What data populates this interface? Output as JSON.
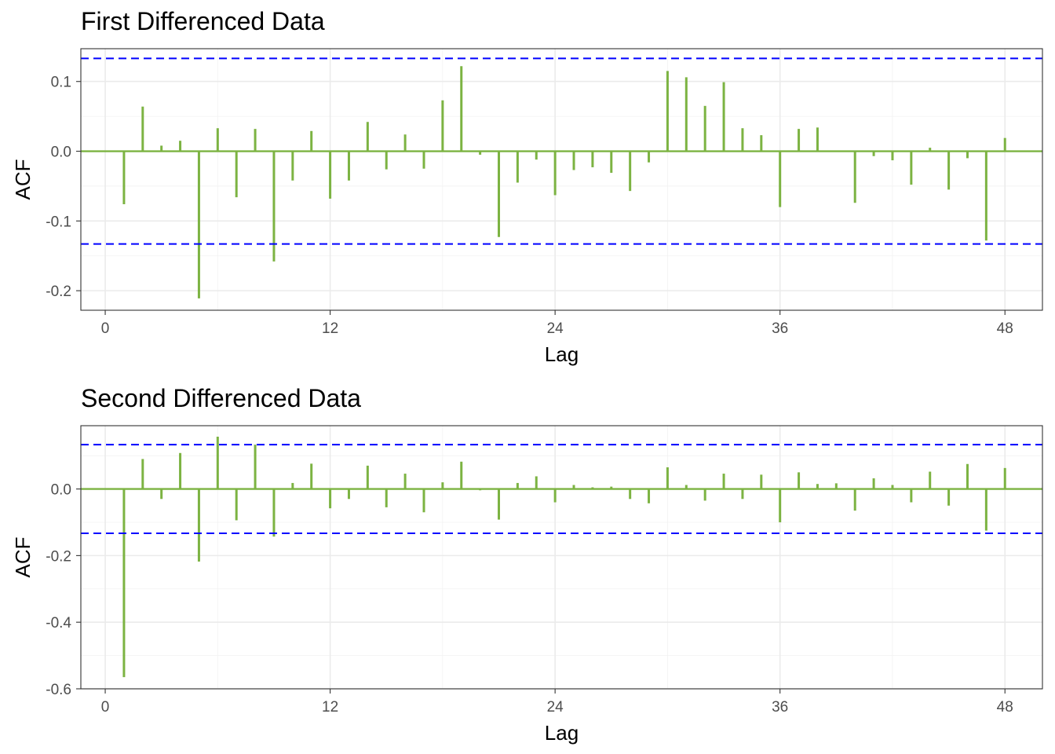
{
  "chart_data": [
    {
      "type": "bar",
      "title": "First Differenced Data",
      "xlabel": "Lag",
      "ylabel": "ACF",
      "xlim": [
        -1.3,
        50
      ],
      "ylim": [
        -0.228,
        0.147
      ],
      "x_ticks": [
        0,
        12,
        24,
        36,
        48
      ],
      "x_tick_labels": [
        "0",
        "12",
        "24",
        "36",
        "48"
      ],
      "y_ticks": [
        -0.2,
        -0.1,
        0.0,
        0.1
      ],
      "y_tick_labels": [
        "-0.2",
        "-0.1",
        "0.0",
        "0.1"
      ],
      "ci": [
        0.133,
        -0.133
      ],
      "grid": true,
      "x": [
        1,
        2,
        3,
        4,
        5,
        6,
        7,
        8,
        9,
        10,
        11,
        12,
        13,
        14,
        15,
        16,
        17,
        18,
        19,
        20,
        21,
        22,
        23,
        24,
        25,
        26,
        27,
        28,
        29,
        30,
        31,
        32,
        33,
        34,
        35,
        36,
        37,
        38,
        39,
        40,
        41,
        42,
        43,
        44,
        45,
        46,
        47,
        48
      ],
      "values": [
        -0.076,
        0.064,
        0.008,
        0.015,
        -0.211,
        0.033,
        -0.066,
        0.032,
        -0.158,
        -0.042,
        0.029,
        -0.068,
        -0.042,
        0.042,
        -0.026,
        0.024,
        -0.025,
        0.073,
        0.122,
        -0.005,
        -0.123,
        -0.045,
        -0.012,
        -0.063,
        -0.027,
        -0.023,
        -0.031,
        -0.057,
        -0.016,
        0.115,
        0.106,
        0.065,
        0.099,
        0.033,
        0.023,
        -0.08,
        0.032,
        0.034,
        0.0,
        -0.074,
        -0.007,
        -0.013,
        -0.048,
        0.005,
        -0.055,
        -0.01,
        -0.128,
        0.019
      ]
    },
    {
      "type": "bar",
      "title": "Second Differenced Data",
      "xlabel": "Lag",
      "ylabel": "ACF",
      "xlim": [
        -1.3,
        50
      ],
      "ylim": [
        -0.6,
        0.19
      ],
      "x_ticks": [
        0,
        12,
        24,
        36,
        48
      ],
      "x_tick_labels": [
        "0",
        "12",
        "24",
        "36",
        "48"
      ],
      "y_ticks": [
        -0.6,
        -0.4,
        -0.2,
        0.0
      ],
      "y_tick_labels": [
        "-0.6",
        "-0.4",
        "-0.2",
        "0.0"
      ],
      "ci": [
        0.133,
        -0.133
      ],
      "grid": true,
      "x": [
        1,
        2,
        3,
        4,
        5,
        6,
        7,
        8,
        9,
        10,
        11,
        12,
        13,
        14,
        15,
        16,
        17,
        18,
        19,
        20,
        21,
        22,
        23,
        24,
        25,
        26,
        27,
        28,
        29,
        30,
        31,
        32,
        33,
        34,
        35,
        36,
        37,
        38,
        39,
        40,
        41,
        42,
        43,
        44,
        45,
        46,
        47,
        48
      ],
      "values": [
        -0.565,
        0.09,
        -0.03,
        0.108,
        -0.218,
        0.157,
        -0.094,
        0.133,
        -0.143,
        0.018,
        0.076,
        -0.058,
        -0.03,
        0.07,
        -0.055,
        0.046,
        -0.07,
        0.02,
        0.082,
        -0.004,
        -0.092,
        0.018,
        0.038,
        -0.04,
        0.012,
        0.005,
        0.007,
        -0.03,
        -0.043,
        0.065,
        0.012,
        -0.035,
        0.046,
        -0.03,
        0.043,
        -0.1,
        0.05,
        0.015,
        0.017,
        -0.065,
        0.032,
        0.012,
        -0.04,
        0.052,
        -0.05,
        0.075,
        -0.125,
        0.063
      ]
    }
  ]
}
